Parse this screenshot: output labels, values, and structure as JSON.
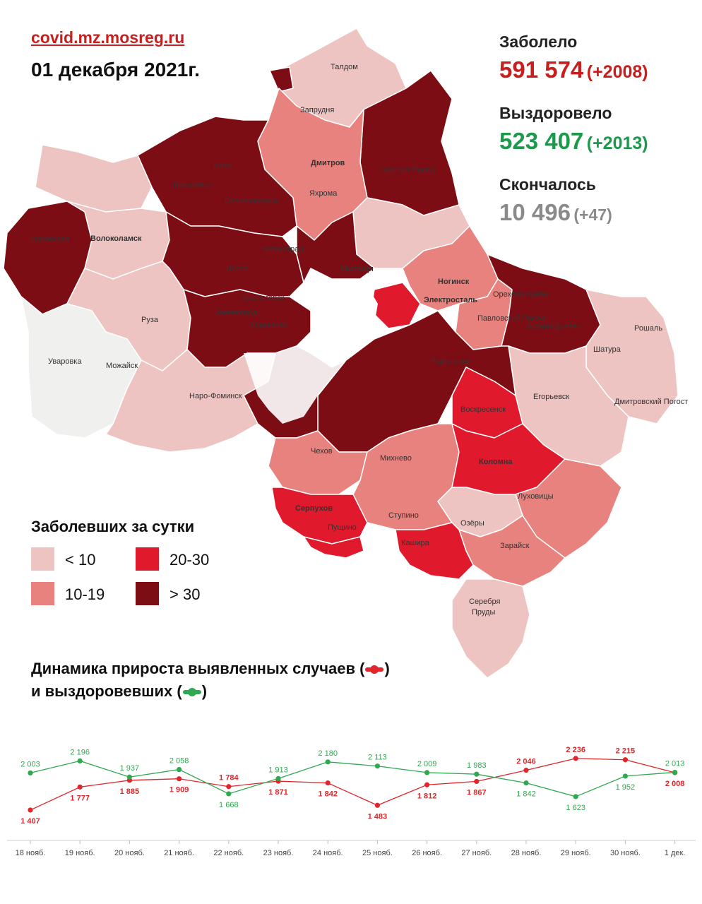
{
  "header": {
    "site": "covid.mz.mosreg.ru",
    "date": "01 декабря 2021г."
  },
  "stats": {
    "infected": {
      "label": "Заболело",
      "value": "591 574",
      "delta": "(+2008)",
      "color": "#c81e1e"
    },
    "recovered": {
      "label": "Выздоровело",
      "value": "523 407",
      "delta": "(+2013)",
      "color": "#1a9a4a"
    },
    "deaths": {
      "label": "Скончалось",
      "value": "10 496",
      "delta": "(+47)",
      "color": "#8a8a8a"
    }
  },
  "map": {
    "labels": {
      "taldom": "Талдом",
      "zaprudnya": "Запрудня",
      "klin": "Клин",
      "vysokovsk": "Высоковск",
      "dmitrov": "Дмитров",
      "yakhroma": "Яхрома",
      "sergiev_posad": "Сергиев Посад",
      "solnechnogorsk": "Солнечногорск",
      "shakhovskaya": "Шаховская",
      "volokolamsk": "Волоколамск",
      "zelenograd": "Зеленоград",
      "istra": "Истра",
      "mytishchi": "Мытищи",
      "krasnogorsk": "Красногорск",
      "zvenigorod": "Звенигород",
      "odintsovo": "Одинцово",
      "ruza": "Руза",
      "uvarovka": "Уваровка",
      "mozhaysk": "Можайск",
      "naro_fominsk": "Наро-Фоминск",
      "noginsk": "Ногинск",
      "elektrostal": "Электросталь",
      "orekhovo_zuevo": "Орехово-Зуево",
      "pavlovsky_posad": "Павловский Посад",
      "likino_dulevo": "Ликино-Дулёво",
      "roshal": "Рошаль",
      "shatura": "Шатура",
      "ramenskoe": "Раменское",
      "voskresensk": "Воскресенск",
      "egoryevsk": "Егорьевск",
      "dmitrovsky_pogost": "Дмитровский Погост",
      "chekhov": "Чехов",
      "mikhnevo": "Михнево",
      "kolomna": "Коломна",
      "lukhovitsy": "Луховицы",
      "serpukhov": "Серпухов",
      "pushchino": "Пущино",
      "stupino": "Ступино",
      "ozery": "Озёры",
      "kashira": "Кашира",
      "zaraysk": "Зарайск",
      "serebryanye_prudy_1": "Серебря",
      "serebryanye_prudy_2": "Пруды"
    }
  },
  "legend": {
    "title": "Заболевших за сутки",
    "items": [
      {
        "label": "< 10",
        "color": "#edc4c2"
      },
      {
        "label": "20-30",
        "color": "#e01a2c"
      },
      {
        "label": "10-19",
        "color": "#e8827f"
      },
      {
        "label": "> 30",
        "color": "#7d0d14"
      }
    ]
  },
  "dynamics": {
    "title_line1": "Динамика прироста выявленных случаев (",
    "title_line2": "и выздоровевших (",
    "close_paren": ")",
    "infected_color": "#e0262a",
    "recovered_color": "#2fa84f"
  },
  "chart_data": {
    "type": "line",
    "categories": [
      "18 нояб.",
      "19 нояб.",
      "20 нояб.",
      "21 нояб.",
      "22 нояб.",
      "23 нояб.",
      "24 нояб.",
      "25 нояб.",
      "26 нояб.",
      "27 нояб.",
      "28 нояб.",
      "29 нояб.",
      "30 нояб.",
      "1 дек."
    ],
    "series": [
      {
        "values": [
          1407,
          1777,
          1885,
          1909,
          1784,
          1871,
          1842,
          1483,
          1812,
          1867,
          2046,
          2236,
          2215,
          2008
        ],
        "labels": [
          "1 407",
          "1 777",
          "1 885",
          "1 909",
          "1 784",
          "1 871",
          "1 842",
          "1 483",
          "1 812",
          "1 867",
          "2 046",
          "2 236",
          "2 215",
          "2 008"
        ],
        "color": "#e0262a"
      },
      {
        "values": [
          2003,
          2196,
          1937,
          2058,
          1668,
          1913,
          2180,
          2113,
          2009,
          1983,
          1842,
          1623,
          1952,
          2013
        ],
        "labels": [
          "2 003",
          "2 196",
          "1 937",
          "2 058",
          "1 668",
          "1 913",
          "2 180",
          "2 113",
          "2 009",
          "1 983",
          "1 842",
          "1 623",
          "1 952",
          "2 013"
        ],
        "color": "#2fa84f"
      }
    ],
    "ylim": [
      1350,
      2280
    ],
    "grid": false,
    "legend": "none"
  }
}
